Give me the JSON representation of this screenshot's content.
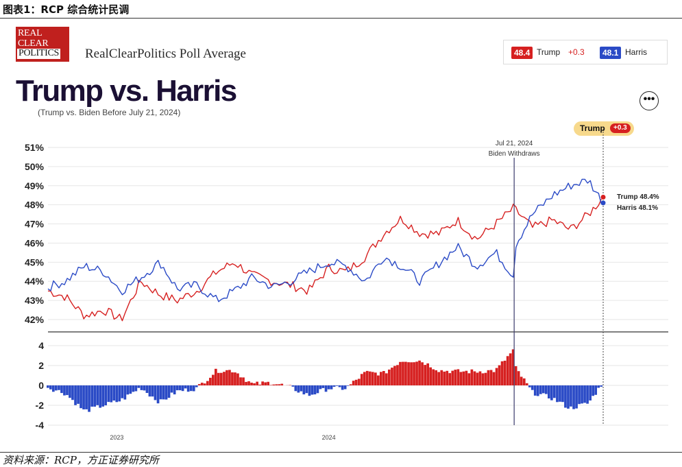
{
  "figure": {
    "caption": "图表1：RCP 综合统计民调",
    "source": "资料来源：RCP，方正证券研究所"
  },
  "header": {
    "logo_lines": [
      "REAL",
      "CLEAR",
      "POLITICS"
    ],
    "site_title": "RealClearPolitics Poll Average",
    "more_icon": "ellipsis-icon",
    "more_label": "•••"
  },
  "legend": {
    "trump_value": "48.4",
    "trump_name": "Trump",
    "trump_lead": "+0.3",
    "harris_value": "48.1",
    "harris_name": "Harris"
  },
  "leader_badge": {
    "name": "Trump",
    "lead": "+0.3"
  },
  "colors": {
    "trump": "#d62020",
    "harris": "#2a4ac6",
    "title": "#1b1034",
    "badge_bg": "#f7d98c"
  },
  "chart_data": [
    {
      "type": "line",
      "title": "Trump vs. Harris",
      "subtitle": "(Trump vs. Biden Before July 21, 2024)",
      "x_range": [
        "2023-03-01",
        "2024-10-26"
      ],
      "ylim": [
        41.6,
        51.3
      ],
      "yticks": [
        42,
        43,
        44,
        45,
        46,
        47,
        48,
        49,
        50,
        51
      ],
      "ytick_labels": [
        "42%",
        "43%",
        "44%",
        "45%",
        "46%",
        "47%",
        "48%",
        "49%",
        "50%",
        "51%"
      ],
      "annotation": {
        "date": "2024-07-21",
        "line1": "Jul 21, 2024",
        "line2": "Biden Withdraws"
      },
      "end_labels": [
        "Trump 48.4%",
        "Harris 48.1%"
      ],
      "x": [
        "2023-03-01",
        "2023-03-20",
        "2023-04-10",
        "2023-05-01",
        "2023-05-20",
        "2023-06-10",
        "2023-07-01",
        "2023-07-20",
        "2023-08-10",
        "2023-09-01",
        "2023-09-20",
        "2023-10-10",
        "2023-11-01",
        "2023-11-20",
        "2023-12-10",
        "2024-01-01",
        "2024-01-20",
        "2024-02-10",
        "2024-03-01",
        "2024-03-20",
        "2024-04-10",
        "2024-05-01",
        "2024-05-20",
        "2024-06-10",
        "2024-07-01",
        "2024-07-20",
        "2024-07-21",
        "2024-08-10",
        "2024-09-01",
        "2024-09-20",
        "2024-10-10",
        "2024-10-26"
      ],
      "series": [
        {
          "name": "Trump",
          "values": [
            43.5,
            43.2,
            42.2,
            42.5,
            42.0,
            44.0,
            43.3,
            43.0,
            43.5,
            44.5,
            45.0,
            44.3,
            44.0,
            43.8,
            43.5,
            44.7,
            44.5,
            45.3,
            46.5,
            47.3,
            46.5,
            46.5,
            47.2,
            46.2,
            47.0,
            47.8,
            47.8,
            46.8,
            47.2,
            46.7,
            47.5,
            48.4
          ]
        },
        {
          "name": "Harris",
          "values": [
            43.7,
            44.0,
            44.8,
            44.5,
            43.5,
            44.2,
            45.0,
            43.6,
            43.8,
            43.0,
            43.5,
            44.2,
            43.7,
            44.0,
            44.5,
            45.0,
            44.8,
            44.0,
            45.3,
            44.8,
            44.0,
            45.0,
            45.8,
            44.8,
            45.5,
            44.3,
            45.8,
            47.5,
            48.5,
            49.0,
            49.3,
            48.1
          ]
        }
      ]
    },
    {
      "type": "bar",
      "title": "",
      "ylim": [
        -4,
        4
      ],
      "yticks": [
        -4,
        -2,
        0,
        2,
        4
      ],
      "ytick_labels": [
        "-4",
        "-2",
        "0",
        "2",
        "4"
      ],
      "xtick_labels": [
        "2023",
        "2024"
      ],
      "x": [
        "2023-03-01",
        "2023-03-20",
        "2023-04-10",
        "2023-05-01",
        "2023-05-20",
        "2023-06-10",
        "2023-07-01",
        "2023-07-20",
        "2023-08-10",
        "2023-09-01",
        "2023-09-20",
        "2023-10-10",
        "2023-11-01",
        "2023-11-20",
        "2023-12-10",
        "2024-01-01",
        "2024-01-20",
        "2024-02-10",
        "2024-03-01",
        "2024-03-20",
        "2024-04-10",
        "2024-05-01",
        "2024-05-20",
        "2024-06-10",
        "2024-07-01",
        "2024-07-20",
        "2024-07-21",
        "2024-08-10",
        "2024-09-01",
        "2024-09-20",
        "2024-10-10",
        "2024-10-26"
      ],
      "series": [
        {
          "name": "Trump lead",
          "values": [
            -0.2,
            -0.8,
            -2.6,
            -2.0,
            -1.5,
            -0.2,
            -1.7,
            -0.6,
            -0.3,
            1.5,
            1.5,
            0.1,
            0.3,
            -0.2,
            -1.0,
            -0.3,
            -0.3,
            1.3,
            1.2,
            2.5,
            2.5,
            1.5,
            1.4,
            1.4,
            1.5,
            3.5,
            2.0,
            -0.7,
            -1.3,
            -2.3,
            -1.8,
            0.3
          ]
        }
      ]
    }
  ]
}
